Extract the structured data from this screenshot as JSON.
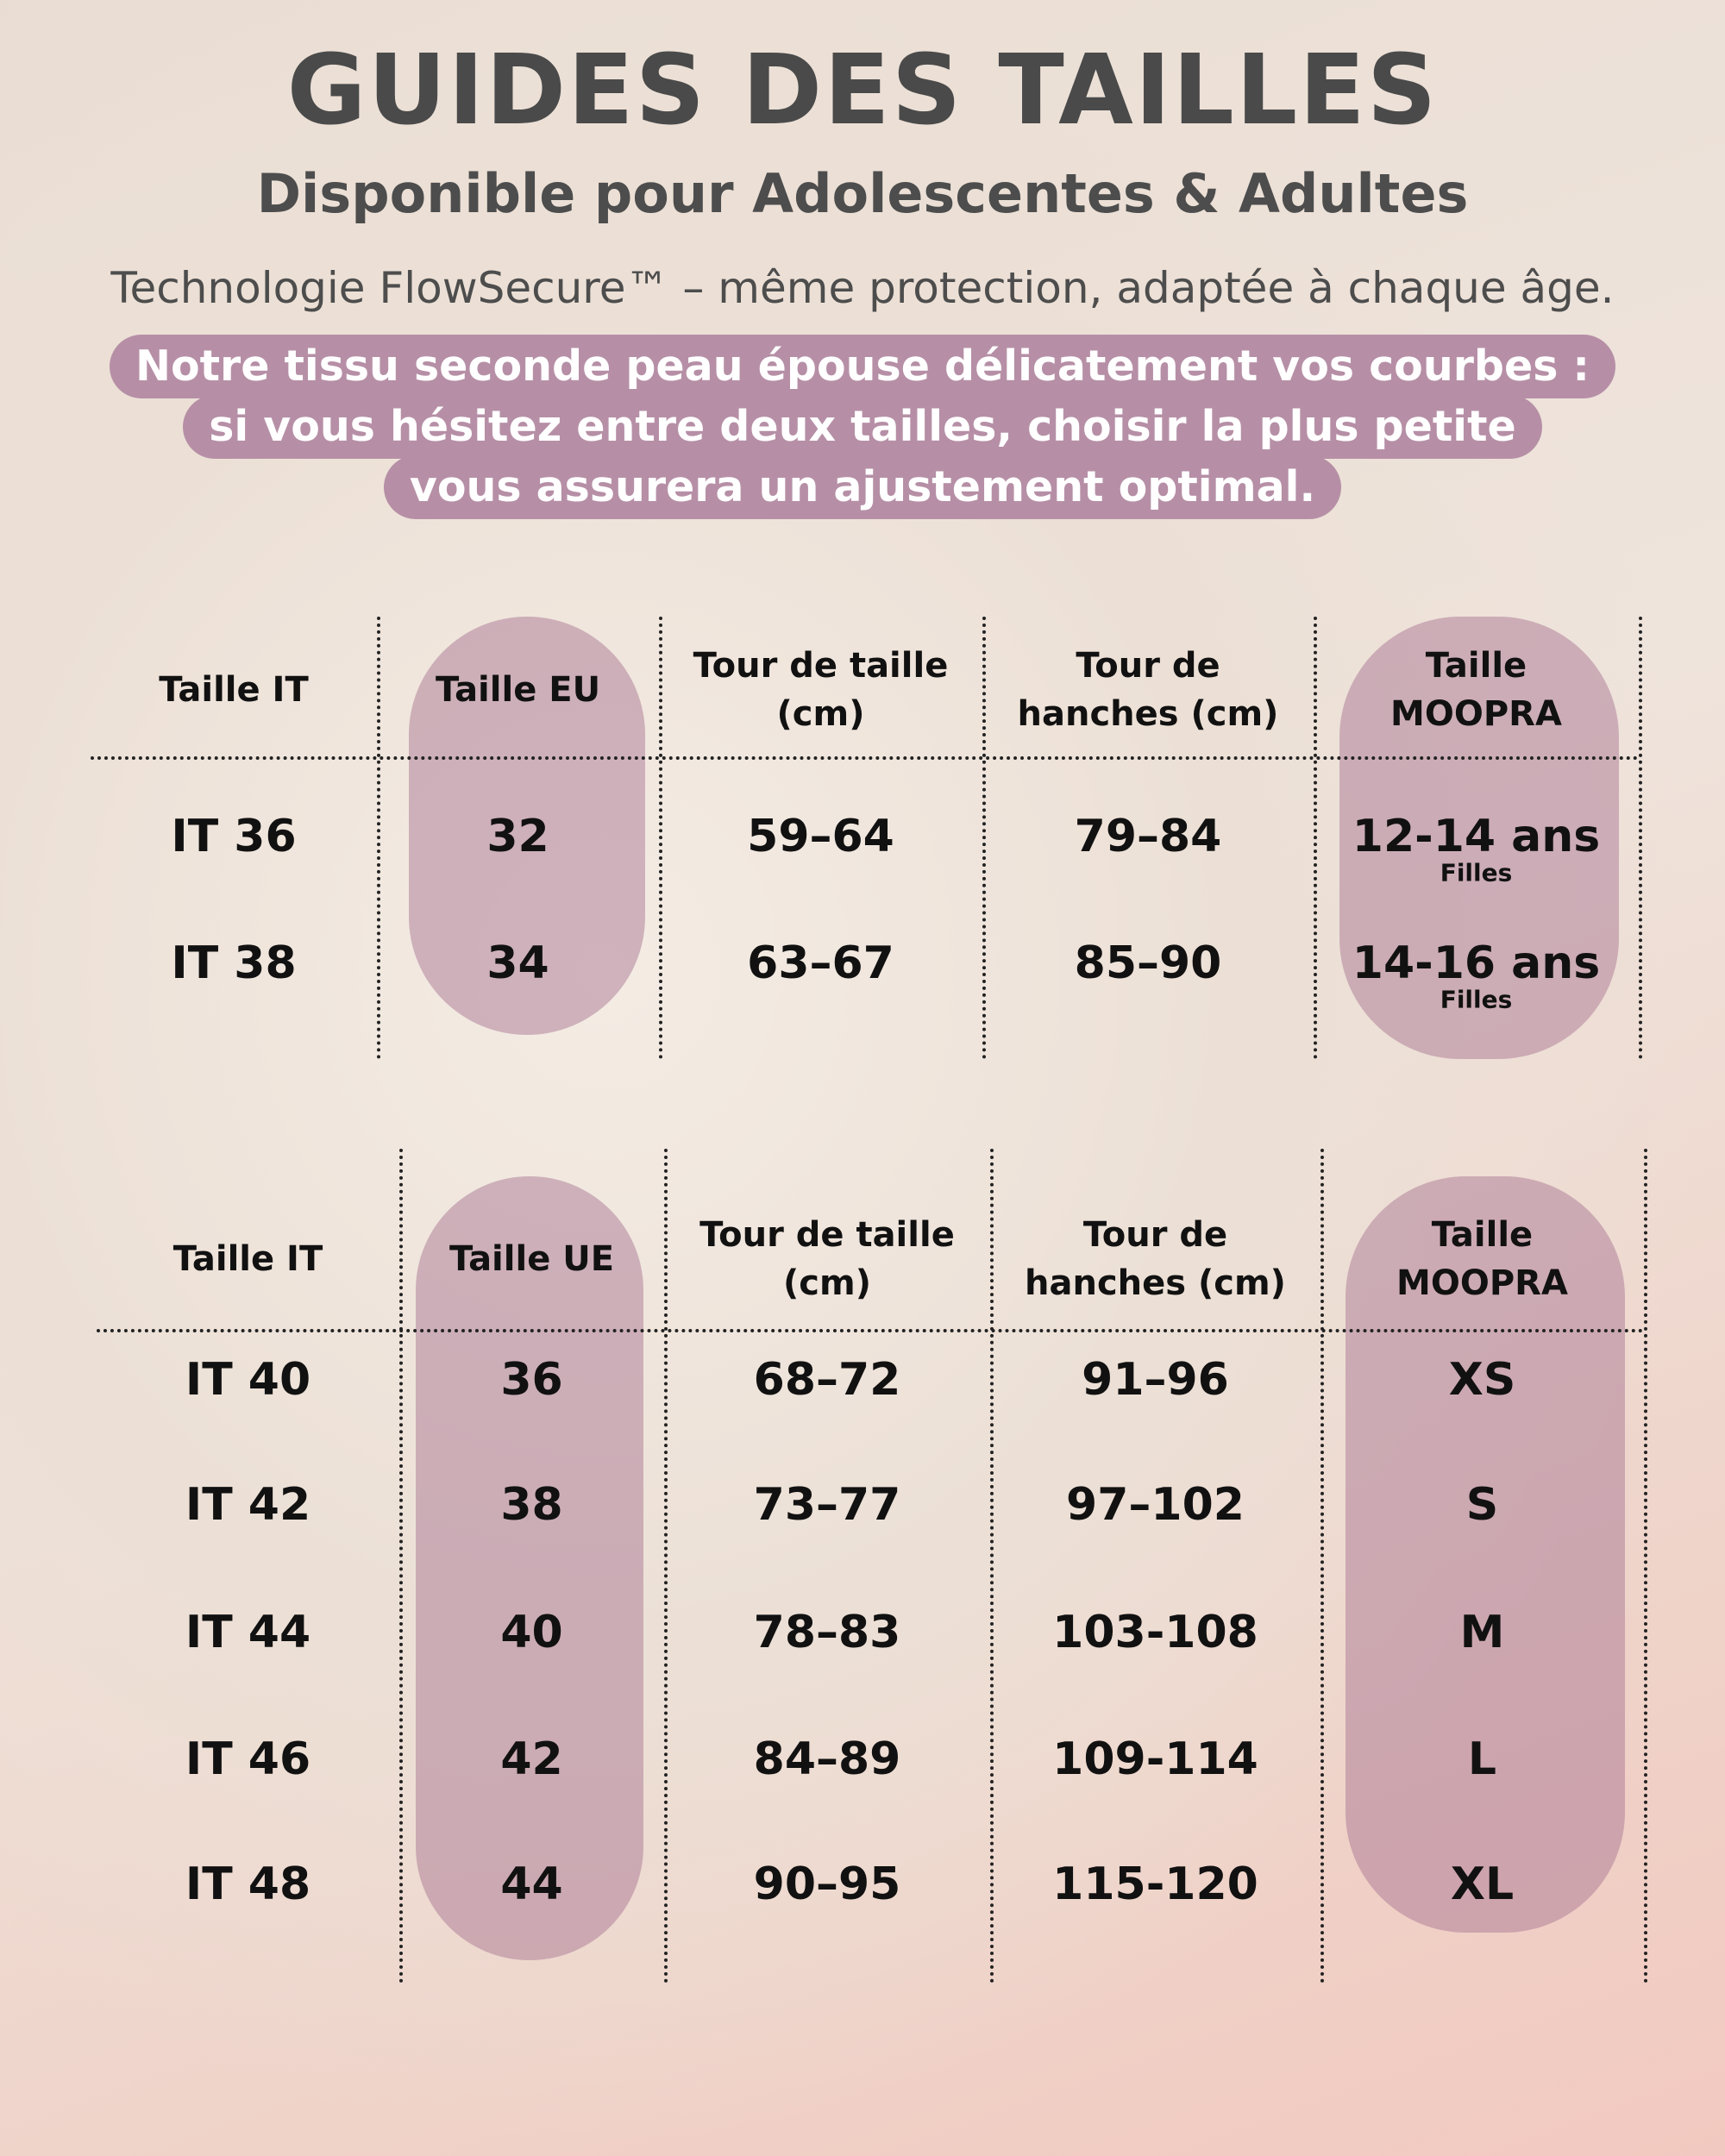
{
  "header": {
    "title": "GUIDES DES TAILLES",
    "subtitle": "Disponible pour Adolescentes & Adultes",
    "tagline": "Technologie FlowSecure™ – même protection, adaptée à chaque âge."
  },
  "notice": {
    "lines": [
      "Notre tissu seconde peau épouse délicatement vos courbes :",
      "si vous hésitez entre deux tailles,  choisir la plus petite",
      "vous assurera un ajustement optimal."
    ]
  },
  "tables": [
    {
      "headers": [
        "Taille IT",
        "Taille EU",
        "Tour de taille (cm)",
        "Tour de hanches (cm)",
        "Taille MOOPRA"
      ],
      "rows": [
        [
          "IT 36",
          "32",
          "59–64",
          "79–84",
          "12-14 ans"
        ],
        [
          "IT 38",
          "34",
          "63–67",
          "85–90",
          "14-16 ans"
        ]
      ],
      "row_notes": [
        "Filles",
        "Filles"
      ]
    },
    {
      "headers": [
        "Taille IT",
        "Taille UE",
        "Tour de taille (cm)",
        "Tour de hanches (cm)",
        "Taille MOOPRA"
      ],
      "rows": [
        [
          "IT 40",
          "36",
          "68–72",
          "91–96",
          "XS"
        ],
        [
          "IT 42",
          "38",
          "73–77",
          "97–102",
          "S"
        ],
        [
          "IT 44",
          "40",
          "78–83",
          "103-108",
          "M"
        ],
        [
          "IT 46",
          "42",
          "84–89",
          "109-114",
          "L"
        ],
        [
          "IT 48",
          "44",
          "90–95",
          "115-120",
          "XL"
        ]
      ]
    }
  ]
}
